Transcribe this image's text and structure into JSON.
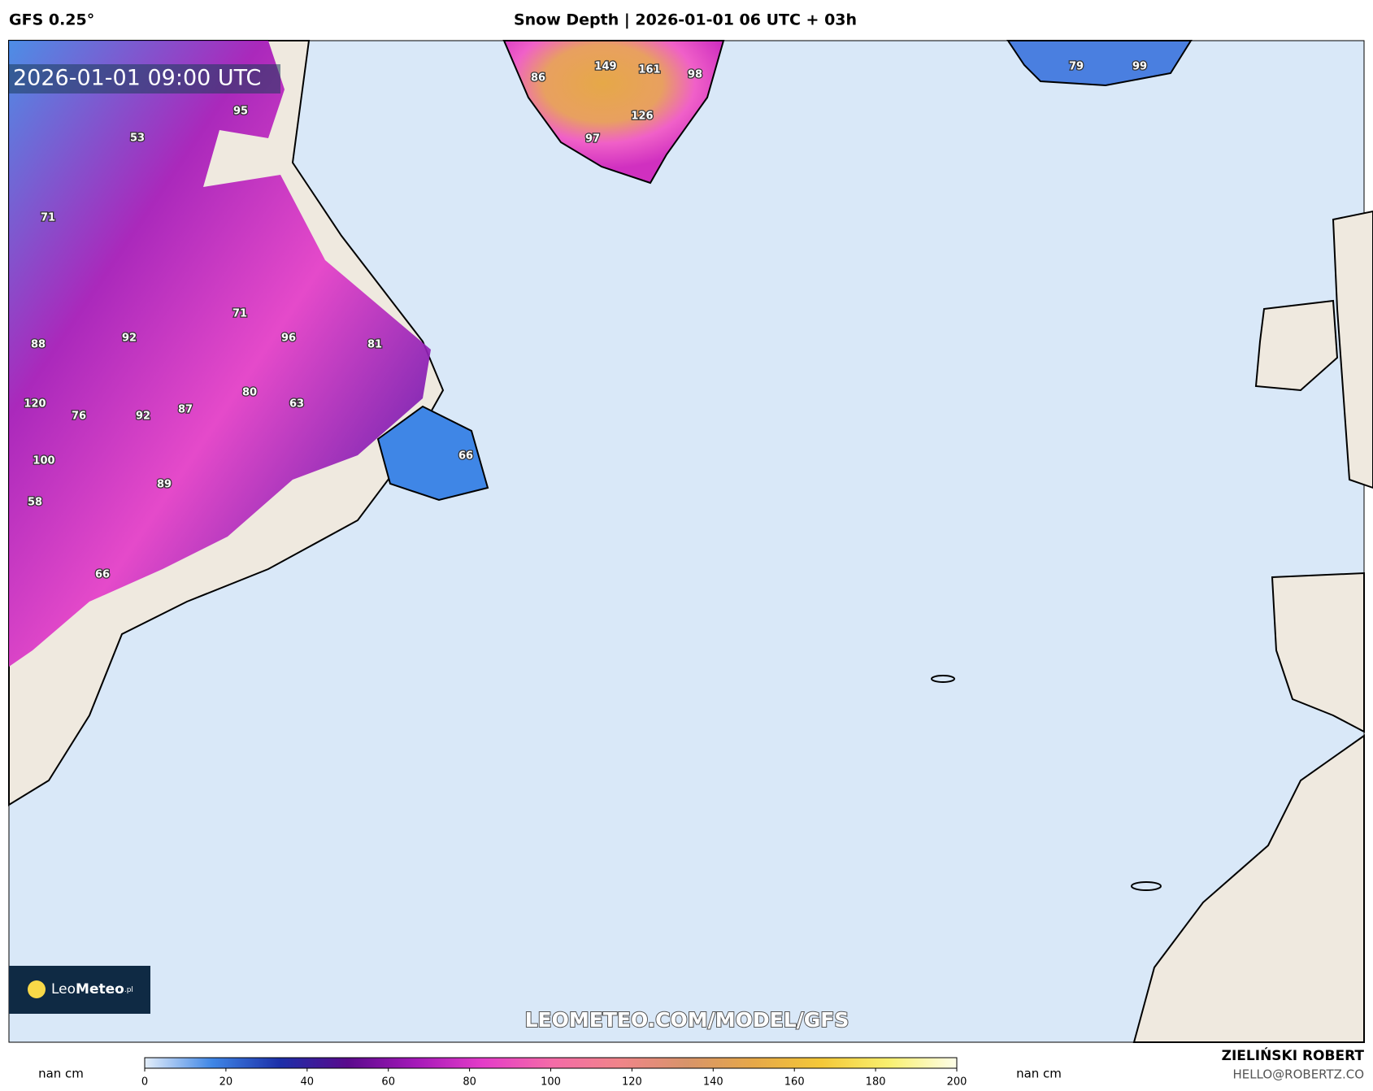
{
  "header": {
    "model": "GFS 0.25°",
    "title": "Snow Depth | 2026-01-01 06 UTC + 03h",
    "valid_time": "2026-01-01 09:00 UTC"
  },
  "map": {
    "labels": [
      53,
      95,
      71,
      71,
      92,
      96,
      88,
      81,
      80,
      63,
      120,
      76,
      92,
      87,
      100,
      89,
      58,
      66,
      66,
      149,
      161,
      86,
      98,
      126,
      97,
      79,
      99
    ],
    "watermark": "LEOMETEO.COM/MODEL/GFS",
    "logo": {
      "light": "Leo",
      "bold": "Meteo",
      "suffix": ".pl"
    }
  },
  "colorbar": {
    "unit_left": "nan cm",
    "unit_right": "nan cm",
    "range": [
      0,
      200
    ],
    "ticks": [
      0,
      20,
      40,
      60,
      80,
      100,
      120,
      140,
      160,
      180,
      200
    ],
    "colors": [
      "#e4eefa",
      "#3f86e6",
      "#1c2fa8",
      "#5a0a8c",
      "#a418b8",
      "#e43cc8",
      "#f46aa8",
      "#f0848a",
      "#d8946a",
      "#e6a848",
      "#f4c838",
      "#f8f070",
      "#fdfde8"
    ]
  },
  "footer": {
    "author": "ZIELIŃSKI ROBERT",
    "email": "HELLO@ROBERTZ.CO"
  }
}
